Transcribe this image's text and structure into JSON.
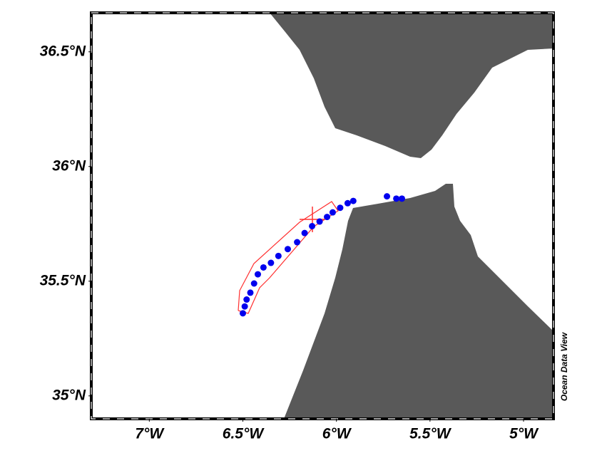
{
  "chart_data": {
    "type": "scatter",
    "credit": "Ocean Data View",
    "x": [
      -6.5,
      -6.49,
      -6.48,
      -6.46,
      -6.44,
      -6.42,
      -6.39,
      -6.35,
      -6.31,
      -6.26,
      -6.21,
      -6.17,
      -6.13,
      -6.09,
      -6.05,
      -6.02,
      -5.98,
      -5.94,
      -5.91,
      -5.73,
      -5.68,
      -5.65
    ],
    "values": [
      35.36,
      35.39,
      35.42,
      35.45,
      35.49,
      35.53,
      35.56,
      35.58,
      35.61,
      35.64,
      35.67,
      35.71,
      35.74,
      35.76,
      35.78,
      35.8,
      35.82,
      35.84,
      35.85,
      35.87,
      35.86,
      35.86
    ],
    "color": "#0000ee",
    "xlim": [
      -7.31,
      -4.84
    ],
    "ylim": [
      34.9,
      36.67
    ],
    "xticks": [
      {
        "value": -7,
        "label": "7°W"
      },
      {
        "value": -6.5,
        "label": "6.5°W"
      },
      {
        "value": -6,
        "label": "6°W"
      },
      {
        "value": -5.5,
        "label": "5.5°W"
      },
      {
        "value": -5,
        "label": "5°W"
      }
    ],
    "yticks": [
      {
        "value": 35,
        "label": "35°N"
      },
      {
        "value": 35.5,
        "label": "35.5°N"
      },
      {
        "value": 36,
        "label": "36°N"
      },
      {
        "value": 36.5,
        "label": "36.5°N"
      }
    ]
  }
}
